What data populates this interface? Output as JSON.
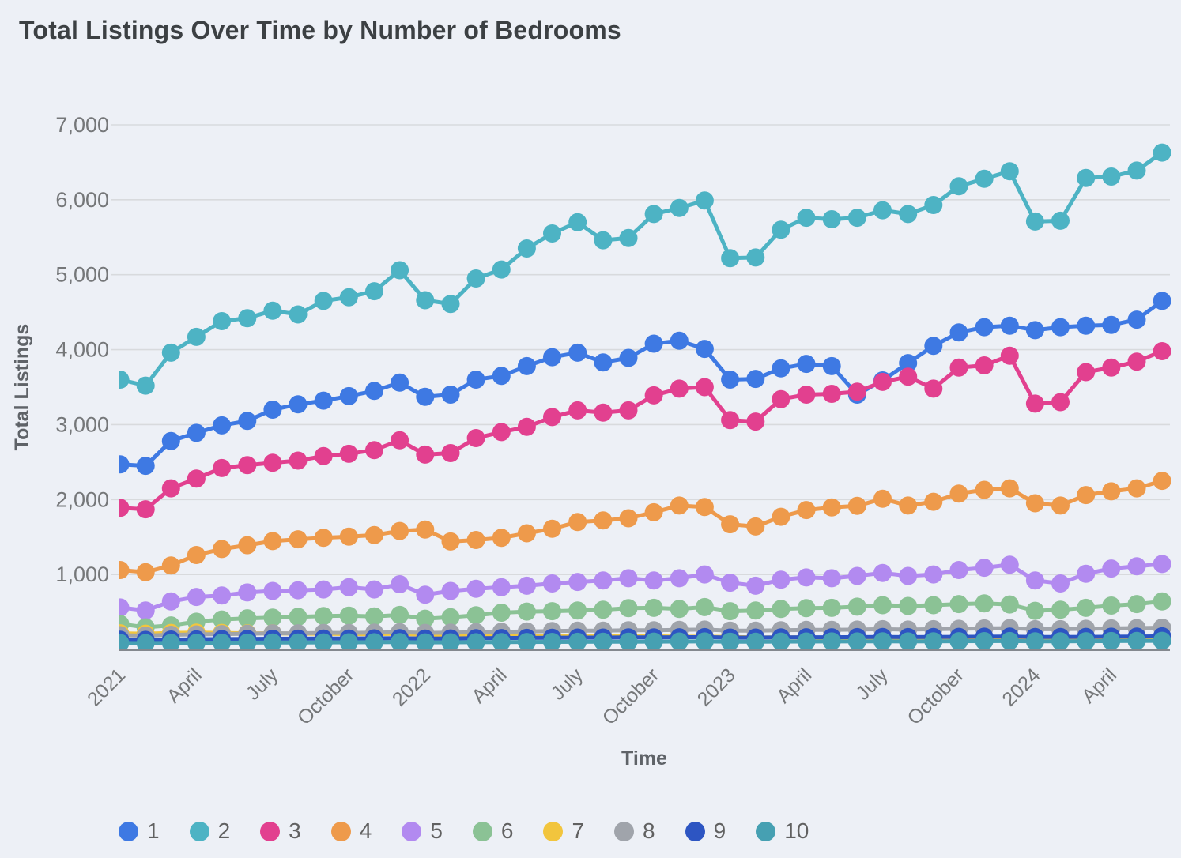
{
  "title": "Total Listings Over Time by Number of Bedrooms",
  "colors": {
    "background": "#edf0f6",
    "gridline": "#d8dadd",
    "axis_line": "#84888e",
    "tick_text": "#757779",
    "axis_title_text": "#5f6368",
    "title_text": "#3c4043",
    "legend_text": "#616161"
  },
  "chart_data": {
    "type": "line",
    "title": "Total Listings Over Time by Number of Bedrooms",
    "xlabel": "Time",
    "ylabel": "Total Listings",
    "ylim": [
      0,
      7000
    ],
    "grid": "horizontal",
    "legend_position": "bottom",
    "point_style": "filled-circle",
    "n_points": 42,
    "y_ticks": [
      {
        "value": 1000,
        "label": "1,000"
      },
      {
        "value": 2000,
        "label": "2,000"
      },
      {
        "value": 3000,
        "label": "3,000"
      },
      {
        "value": 4000,
        "label": "4,000"
      },
      {
        "value": 5000,
        "label": "5,000"
      },
      {
        "value": 6000,
        "label": "6,000"
      },
      {
        "value": 7000,
        "label": "7,000"
      }
    ],
    "x_ticks": [
      {
        "index": 0,
        "label": "2021"
      },
      {
        "index": 3,
        "label": "April"
      },
      {
        "index": 6,
        "label": "July"
      },
      {
        "index": 9,
        "label": "October"
      },
      {
        "index": 12,
        "label": "2022"
      },
      {
        "index": 15,
        "label": "April"
      },
      {
        "index": 18,
        "label": "July"
      },
      {
        "index": 21,
        "label": "October"
      },
      {
        "index": 24,
        "label": "2023"
      },
      {
        "index": 27,
        "label": "April"
      },
      {
        "index": 30,
        "label": "July"
      },
      {
        "index": 33,
        "label": "October"
      },
      {
        "index": 36,
        "label": "2024"
      },
      {
        "index": 39,
        "label": "April"
      }
    ],
    "series": [
      {
        "name": "1",
        "color": "#3e79e3",
        "values": [
          2470,
          2450,
          2780,
          2890,
          2990,
          3050,
          3200,
          3270,
          3320,
          3380,
          3450,
          3560,
          3370,
          3400,
          3600,
          3650,
          3780,
          3900,
          3960,
          3830,
          3890,
          4080,
          4120,
          4010,
          3600,
          3610,
          3750,
          3810,
          3780,
          3400,
          3590,
          3820,
          4050,
          4230,
          4300,
          4320,
          4260,
          4300,
          4320,
          4330,
          4400,
          4650
        ]
      },
      {
        "name": "2",
        "color": "#4db3c4",
        "values": [
          3600,
          3520,
          3960,
          4170,
          4380,
          4420,
          4520,
          4470,
          4650,
          4700,
          4780,
          5060,
          4660,
          4610,
          4950,
          5070,
          5350,
          5550,
          5700,
          5460,
          5490,
          5810,
          5890,
          5990,
          5220,
          5230,
          5600,
          5760,
          5740,
          5760,
          5860,
          5810,
          5930,
          6180,
          6280,
          6380,
          5710,
          5720,
          6290,
          6310,
          6390,
          6630
        ]
      },
      {
        "name": "3",
        "color": "#e2408f",
        "values": [
          1890,
          1870,
          2150,
          2280,
          2420,
          2460,
          2490,
          2520,
          2580,
          2610,
          2660,
          2790,
          2600,
          2620,
          2820,
          2900,
          2970,
          3100,
          3190,
          3160,
          3190,
          3390,
          3480,
          3500,
          3060,
          3040,
          3340,
          3400,
          3410,
          3440,
          3570,
          3640,
          3480,
          3760,
          3790,
          3920,
          3280,
          3300,
          3700,
          3760,
          3840,
          3980
        ]
      },
      {
        "name": "4",
        "color": "#ee9a4b",
        "values": [
          1060,
          1030,
          1120,
          1260,
          1340,
          1390,
          1445,
          1470,
          1490,
          1505,
          1525,
          1580,
          1600,
          1440,
          1460,
          1490,
          1550,
          1610,
          1700,
          1720,
          1750,
          1830,
          1920,
          1900,
          1670,
          1640,
          1770,
          1860,
          1895,
          1915,
          2010,
          1920,
          1970,
          2080,
          2130,
          2150,
          1950,
          1920,
          2060,
          2110,
          2150,
          2250
        ]
      },
      {
        "name": "5",
        "color": "#b28af0",
        "values": [
          560,
          520,
          640,
          700,
          720,
          760,
          780,
          790,
          800,
          830,
          800,
          870,
          730,
          780,
          810,
          830,
          850,
          880,
          900,
          920,
          950,
          920,
          950,
          1000,
          890,
          850,
          930,
          960,
          950,
          980,
          1020,
          980,
          1000,
          1060,
          1090,
          1130,
          920,
          880,
          1010,
          1080,
          1110,
          1140
        ]
      },
      {
        "name": "6",
        "color": "#8bc295",
        "values": [
          340,
          295,
          320,
          370,
          400,
          415,
          425,
          435,
          445,
          450,
          440,
          460,
          410,
          430,
          455,
          490,
          505,
          510,
          520,
          530,
          550,
          555,
          540,
          565,
          510,
          520,
          540,
          550,
          555,
          570,
          590,
          580,
          590,
          605,
          615,
          600,
          515,
          530,
          555,
          585,
          605,
          640
        ]
      },
      {
        "name": "7",
        "color": "#f2c53d",
        "values": [
          215,
          210,
          220,
          225,
          220,
          215,
          215,
          210,
          210,
          205,
          205,
          210,
          195,
          195,
          190,
          190,
          185,
          185,
          180,
          180,
          175,
          175,
          170,
          170,
          165,
          160,
          160,
          160,
          155,
          155,
          150,
          150,
          150,
          145,
          145,
          145,
          140,
          140,
          140,
          140,
          140,
          140
        ]
      },
      {
        "name": "8",
        "color": "#a0a4ab",
        "values": [
          190,
          185,
          195,
          200,
          205,
          210,
          215,
          215,
          220,
          220,
          225,
          230,
          220,
          225,
          230,
          235,
          240,
          245,
          250,
          250,
          255,
          255,
          260,
          265,
          250,
          250,
          255,
          260,
          260,
          265,
          270,
          265,
          270,
          275,
          280,
          285,
          270,
          270,
          275,
          280,
          285,
          290
        ]
      },
      {
        "name": "9",
        "color": "#2d55c2",
        "values": [
          130,
          128,
          132,
          135,
          138,
          140,
          142,
          143,
          145,
          146,
          148,
          150,
          145,
          147,
          150,
          152,
          154,
          156,
          158,
          158,
          160,
          160,
          162,
          164,
          158,
          158,
          160,
          162,
          162,
          164,
          166,
          164,
          166,
          168,
          170,
          172,
          166,
          166,
          168,
          170,
          172,
          175
        ]
      },
      {
        "name": "10",
        "color": "#46a0b2",
        "values": [
          85,
          84,
          86,
          88,
          90,
          91,
          92,
          93,
          94,
          95,
          96,
          98,
          94,
          95,
          96,
          98,
          99,
          100,
          101,
          102,
          103,
          104,
          105,
          106,
          102,
          103,
          104,
          105,
          106,
          107,
          108,
          107,
          108,
          110,
          111,
          112,
          108,
          109,
          110,
          112,
          113,
          115
        ]
      }
    ]
  }
}
